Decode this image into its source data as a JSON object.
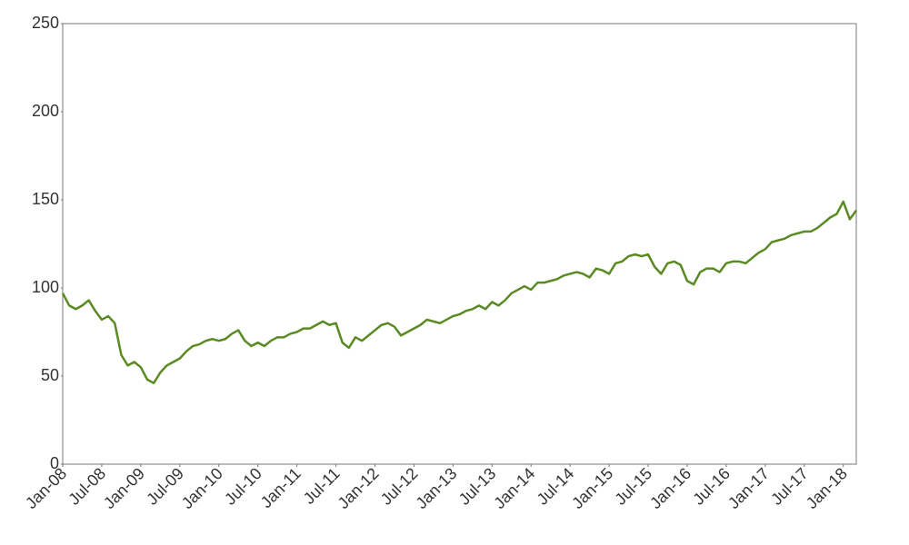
{
  "chart_data": {
    "type": "line",
    "color": "#5a8a23",
    "x": [
      "Jan-08",
      "Feb-08",
      "Mar-08",
      "Apr-08",
      "May-08",
      "Jun-08",
      "Jul-08",
      "Aug-08",
      "Sep-08",
      "Oct-08",
      "Nov-08",
      "Dec-08",
      "Jan-09",
      "Feb-09",
      "Mar-09",
      "Apr-09",
      "May-09",
      "Jun-09",
      "Jul-09",
      "Aug-09",
      "Sep-09",
      "Oct-09",
      "Nov-09",
      "Dec-09",
      "Jan-10",
      "Feb-10",
      "Mar-10",
      "Apr-10",
      "May-10",
      "Jun-10",
      "Jul-10",
      "Aug-10",
      "Sep-10",
      "Oct-10",
      "Nov-10",
      "Dec-10",
      "Jan-11",
      "Feb-11",
      "Mar-11",
      "Apr-11",
      "May-11",
      "Jun-11",
      "Jul-11",
      "Aug-11",
      "Sep-11",
      "Oct-11",
      "Nov-11",
      "Dec-11",
      "Jan-12",
      "Feb-12",
      "Mar-12",
      "Apr-12",
      "May-12",
      "Jun-12",
      "Jul-12",
      "Aug-12",
      "Sep-12",
      "Oct-12",
      "Nov-12",
      "Dec-12",
      "Jan-13",
      "Feb-13",
      "Mar-13",
      "Apr-13",
      "May-13",
      "Jun-13",
      "Jul-13",
      "Aug-13",
      "Sep-13",
      "Oct-13",
      "Nov-13",
      "Dec-13",
      "Jan-14",
      "Feb-14",
      "Mar-14",
      "Apr-14",
      "May-14",
      "Jun-14",
      "Jul-14",
      "Aug-14",
      "Sep-14",
      "Oct-14",
      "Nov-14",
      "Dec-14",
      "Jan-15",
      "Feb-15",
      "Mar-15",
      "Apr-15",
      "May-15",
      "Jun-15",
      "Jul-15",
      "Aug-15",
      "Sep-15",
      "Oct-15",
      "Nov-15",
      "Dec-15",
      "Jan-16",
      "Feb-16",
      "Mar-16",
      "Apr-16",
      "May-16",
      "Jun-16",
      "Jul-16",
      "Aug-16",
      "Sep-16",
      "Oct-16",
      "Nov-16",
      "Dec-16",
      "Jan-17",
      "Feb-17",
      "Mar-17",
      "Apr-17",
      "May-17",
      "Jun-17",
      "Jul-17",
      "Aug-17",
      "Sep-17",
      "Oct-17",
      "Nov-17",
      "Dec-17",
      "Jan-18",
      "Feb-18",
      "Mar-18"
    ],
    "values": [
      97,
      90,
      88,
      90,
      93,
      87,
      82,
      84,
      80,
      62,
      56,
      58,
      55,
      48,
      46,
      52,
      56,
      58,
      60,
      64,
      67,
      68,
      70,
      71,
      70,
      71,
      74,
      76,
      70,
      67,
      69,
      67,
      70,
      72,
      72,
      74,
      75,
      77,
      77,
      79,
      81,
      79,
      80,
      69,
      66,
      72,
      70,
      73,
      76,
      79,
      80,
      78,
      73,
      75,
      77,
      79,
      82,
      81,
      80,
      82,
      84,
      85,
      87,
      88,
      90,
      88,
      92,
      90,
      93,
      97,
      99,
      101,
      99,
      103,
      103,
      104,
      105,
      107,
      108,
      109,
      108,
      106,
      111,
      110,
      108,
      114,
      115,
      118,
      119,
      118,
      119,
      112,
      108,
      114,
      115,
      113,
      104,
      102,
      109,
      111,
      111,
      109,
      114,
      115,
      115,
      114,
      117,
      120,
      122,
      126,
      127,
      128,
      130,
      131,
      132,
      132,
      134,
      137,
      140,
      142,
      149,
      139,
      144
    ],
    "xlim": [
      "Jan-08",
      "Mar-18"
    ],
    "xticks": [
      "Jan-08",
      "Jul-08",
      "Jan-09",
      "Jul-09",
      "Jan-10",
      "Jul-10",
      "Jan-11",
      "Jul-11",
      "Jan-12",
      "Jul-12",
      "Jan-13",
      "Jul-13",
      "Jan-14",
      "Jul-14",
      "Jan-15",
      "Jul-15",
      "Jan-16",
      "Jul-16",
      "Jan-17",
      "Jul-17",
      "Jan-18"
    ],
    "ylim": [
      0,
      250
    ],
    "yticks": [
      0,
      50,
      100,
      150,
      200,
      250
    ]
  }
}
